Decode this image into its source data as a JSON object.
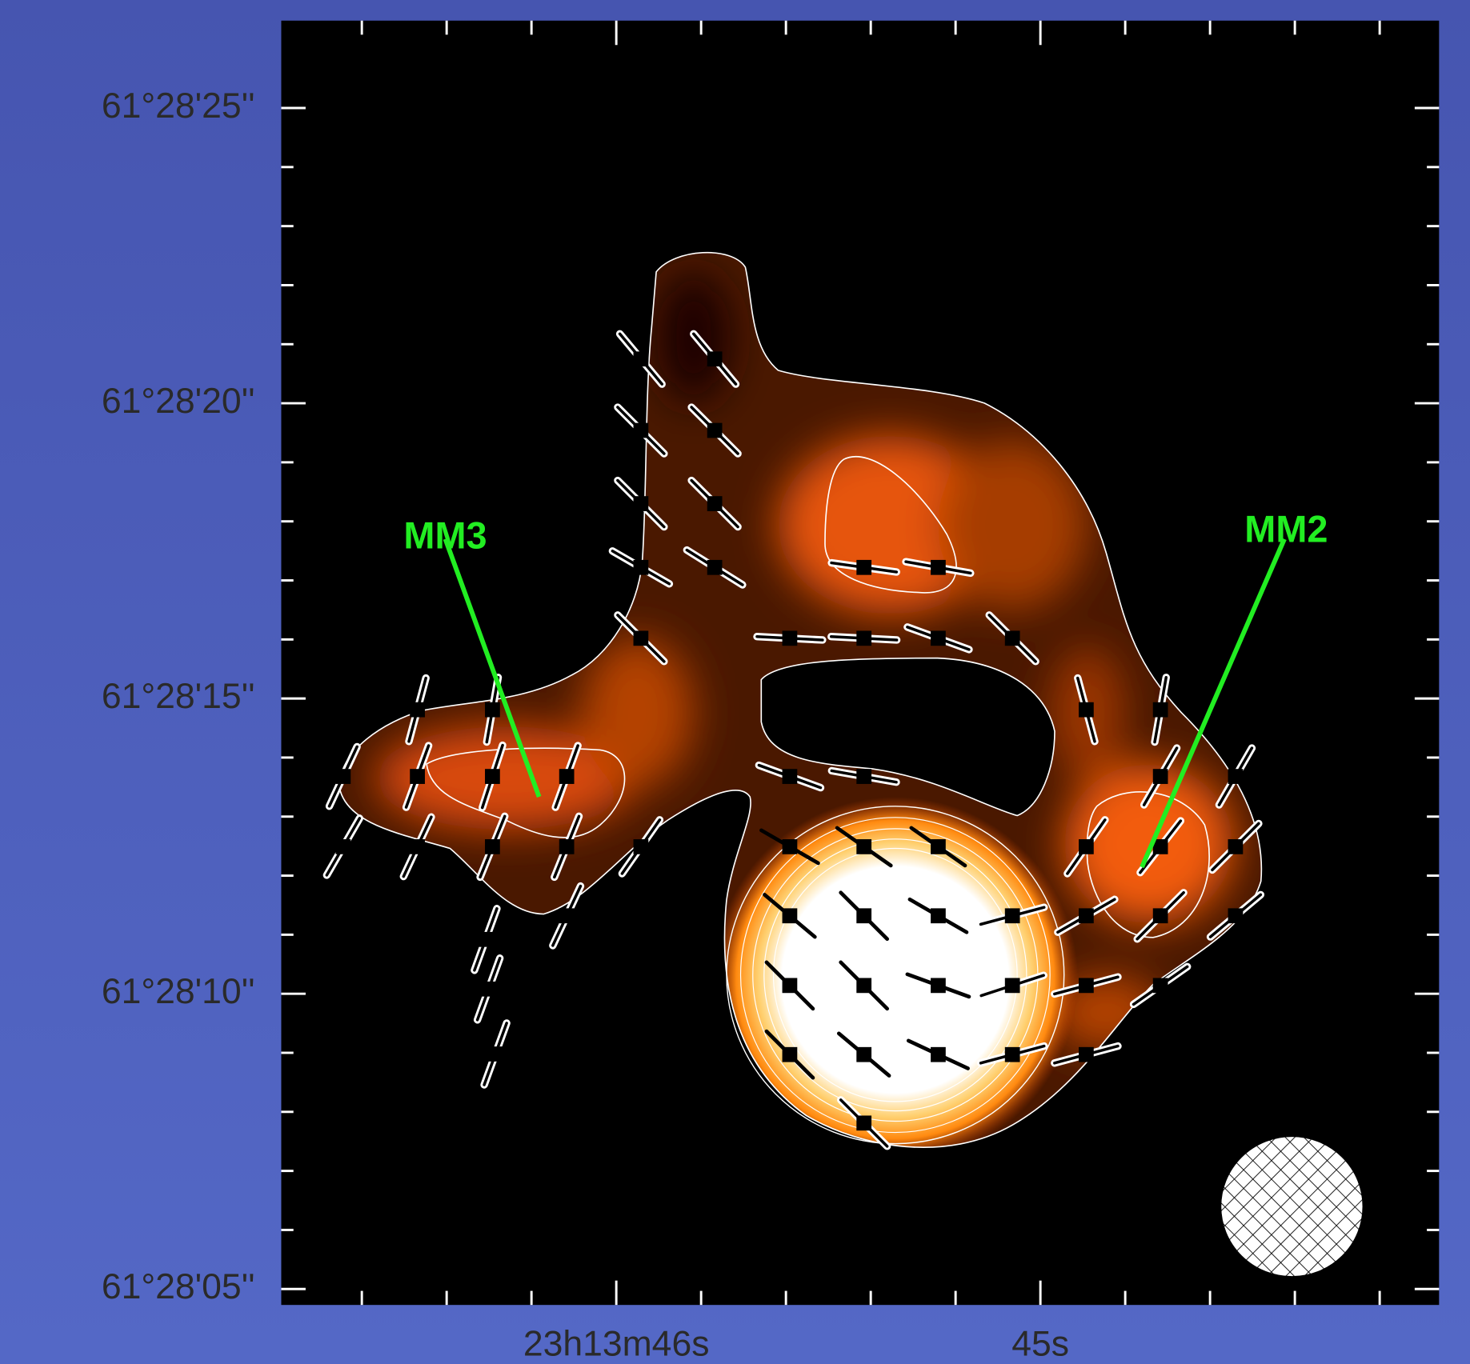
{
  "chart_data": {
    "type": "polarization-map",
    "xlim": [
      46.79,
      44.06
    ],
    "ylim": [
      4.73,
      26.48
    ],
    "xticks": [
      {
        "value": 46,
        "label": "23h13m46s"
      },
      {
        "value": 45,
        "label": "45s"
      }
    ],
    "xminorticks": [
      46.6,
      46.4,
      46.2,
      45.8,
      45.6,
      45.4,
      45.2,
      44.8,
      44.6,
      44.4,
      44.2
    ],
    "yticks": [
      {
        "value": 25,
        "label": "61°28'25''"
      },
      {
        "value": 20,
        "label": "61°28'20''"
      },
      {
        "value": 15,
        "label": "61°28'15''"
      },
      {
        "value": 10,
        "label": "61°28'10''"
      },
      {
        "value": 5,
        "label": "61°28'05''"
      }
    ],
    "yminorticks": [
      6,
      7,
      8,
      9,
      11,
      12,
      13,
      14,
      16,
      17,
      18,
      19,
      21,
      22,
      23,
      24
    ],
    "annotations": [
      {
        "text": "MM3",
        "color": "#22ee22"
      },
      {
        "text": "MM2",
        "color": "#22ee22"
      }
    ],
    "vectors": [
      {
        "ra": 45.942,
        "dec": 20.75,
        "pa": 40,
        "style": "outlined"
      },
      {
        "ra": 45.768,
        "dec": 20.75,
        "pa": 40,
        "style": "outlined"
      },
      {
        "ra": 45.942,
        "dec": 19.54,
        "pa": 45,
        "style": "outlined"
      },
      {
        "ra": 45.768,
        "dec": 19.54,
        "pa": 45,
        "style": "outlined"
      },
      {
        "ra": 45.942,
        "dec": 18.3,
        "pa": 45,
        "style": "outlined"
      },
      {
        "ra": 45.768,
        "dec": 18.3,
        "pa": 45,
        "style": "outlined"
      },
      {
        "ra": 45.942,
        "dec": 17.22,
        "pa": 60,
        "style": "outlined"
      },
      {
        "ra": 45.768,
        "dec": 17.22,
        "pa": 58,
        "style": "outlined"
      },
      {
        "ra": 45.942,
        "dec": 16.02,
        "pa": 45,
        "style": "outlined"
      },
      {
        "ra": 45.591,
        "dec": 16.02,
        "pa": 87,
        "style": "outlined"
      },
      {
        "ra": 45.416,
        "dec": 16.02,
        "pa": 87,
        "style": "outlined"
      },
      {
        "ra": 45.241,
        "dec": 16.02,
        "pa": 70,
        "style": "outlined"
      },
      {
        "ra": 45.066,
        "dec": 16.02,
        "pa": 45,
        "style": "outlined"
      },
      {
        "ra": 45.416,
        "dec": 17.22,
        "pa": 82,
        "style": "outlined"
      },
      {
        "ra": 45.241,
        "dec": 17.22,
        "pa": 80,
        "style": "outlined"
      },
      {
        "ra": 46.469,
        "dec": 14.81,
        "pa": -15,
        "style": "outlined"
      },
      {
        "ra": 46.292,
        "dec": 14.81,
        "pa": -10,
        "style": "outlined"
      },
      {
        "ra": 44.892,
        "dec": 14.81,
        "pa": 15,
        "style": "outlined"
      },
      {
        "ra": 44.717,
        "dec": 14.81,
        "pa": -10,
        "style": "outlined"
      },
      {
        "ra": 46.644,
        "dec": 13.68,
        "pa": -25,
        "style": "outlined"
      },
      {
        "ra": 46.469,
        "dec": 13.68,
        "pa": -20,
        "style": "outlined"
      },
      {
        "ra": 46.292,
        "dec": 13.68,
        "pa": -18,
        "style": "outlined"
      },
      {
        "ra": 46.117,
        "dec": 13.68,
        "pa": -20,
        "style": "outlined"
      },
      {
        "ra": 45.591,
        "dec": 13.68,
        "pa": 70,
        "style": "outlined"
      },
      {
        "ra": 45.416,
        "dec": 13.68,
        "pa": 80,
        "style": "outlined"
      },
      {
        "ra": 44.717,
        "dec": 13.68,
        "pa": -30,
        "style": "outlined"
      },
      {
        "ra": 44.54,
        "dec": 13.68,
        "pa": -30,
        "style": "outlined"
      },
      {
        "ra": 46.644,
        "dec": 12.49,
        "pa": -30,
        "style": "outlined"
      },
      {
        "ra": 46.469,
        "dec": 12.49,
        "pa": -25,
        "style": "outlined"
      },
      {
        "ra": 46.292,
        "dec": 12.49,
        "pa": -22,
        "style": "outlined"
      },
      {
        "ra": 46.117,
        "dec": 12.49,
        "pa": -22,
        "style": "outlined"
      },
      {
        "ra": 45.942,
        "dec": 12.49,
        "pa": -35,
        "style": "outlined"
      },
      {
        "ra": 44.892,
        "dec": 12.49,
        "pa": -35,
        "style": "outlined"
      },
      {
        "ra": 44.717,
        "dec": 12.49,
        "pa": -38,
        "style": "outlined"
      },
      {
        "ra": 44.54,
        "dec": 12.49,
        "pa": -45,
        "style": "outlined"
      },
      {
        "ra": 46.117,
        "dec": 11.32,
        "pa": -25,
        "style": "outlined"
      },
      {
        "ra": 45.066,
        "dec": 11.32,
        "pa": -75,
        "style": "outlined"
      },
      {
        "ra": 44.892,
        "dec": 11.32,
        "pa": -60,
        "style": "outlined"
      },
      {
        "ra": 44.717,
        "dec": 11.32,
        "pa": -45,
        "style": "outlined"
      },
      {
        "ra": 44.54,
        "dec": 11.32,
        "pa": -50,
        "style": "outlined"
      },
      {
        "ra": 45.066,
        "dec": 10.14,
        "pa": -72,
        "style": "outlined"
      },
      {
        "ra": 44.892,
        "dec": 10.14,
        "pa": -75,
        "style": "outlined"
      },
      {
        "ra": 44.717,
        "dec": 10.14,
        "pa": -55,
        "style": "outlined"
      },
      {
        "ra": 45.066,
        "dec": 8.97,
        "pa": -75,
        "style": "outlined"
      },
      {
        "ra": 44.892,
        "dec": 8.97,
        "pa": -75,
        "style": "outlined"
      },
      {
        "ra": 45.416,
        "dec": 7.81,
        "pa": 45,
        "style": "outlined"
      },
      {
        "ra": 46.308,
        "dec": 10.92,
        "pa": -20,
        "style": "outlined"
      },
      {
        "ra": 46.301,
        "dec": 10.08,
        "pa": -20,
        "style": "outlined"
      },
      {
        "ra": 46.285,
        "dec": 8.98,
        "pa": -20,
        "style": "outlined"
      },
      {
        "ra": 45.591,
        "dec": 12.49,
        "pa": 60,
        "style": "solid"
      },
      {
        "ra": 45.416,
        "dec": 12.49,
        "pa": 55,
        "style": "solid"
      },
      {
        "ra": 45.241,
        "dec": 12.49,
        "pa": 55,
        "style": "solid"
      },
      {
        "ra": 45.591,
        "dec": 11.32,
        "pa": 50,
        "style": "solid"
      },
      {
        "ra": 45.416,
        "dec": 11.32,
        "pa": 45,
        "style": "solid"
      },
      {
        "ra": 45.241,
        "dec": 11.32,
        "pa": 60,
        "style": "solid"
      },
      {
        "ra": 45.591,
        "dec": 10.14,
        "pa": 45,
        "style": "solid"
      },
      {
        "ra": 45.416,
        "dec": 10.14,
        "pa": 45,
        "style": "solid"
      },
      {
        "ra": 45.241,
        "dec": 10.14,
        "pa": 70,
        "style": "solid"
      },
      {
        "ra": 45.591,
        "dec": 8.97,
        "pa": 45,
        "style": "solid"
      },
      {
        "ra": 45.416,
        "dec": 8.97,
        "pa": 50,
        "style": "solid"
      },
      {
        "ra": 45.241,
        "dec": 8.97,
        "pa": 65,
        "style": "solid"
      }
    ]
  }
}
